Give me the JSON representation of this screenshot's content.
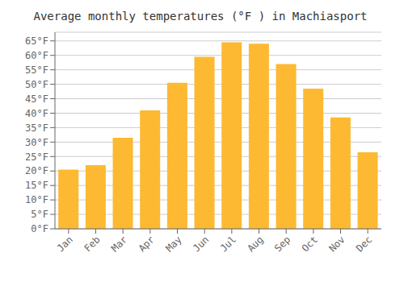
{
  "chart_data": {
    "type": "bar",
    "title": "Average monthly temperatures (°F ) in Machiasport",
    "categories": [
      "Jan",
      "Feb",
      "Mar",
      "Apr",
      "May",
      "Jun",
      "Jul",
      "Aug",
      "Sep",
      "Oct",
      "Nov",
      "Dec"
    ],
    "values": [
      20.5,
      22.0,
      31.5,
      41.0,
      50.5,
      59.5,
      64.5,
      64.0,
      57.0,
      48.5,
      38.5,
      26.5
    ],
    "color": "#FDB931",
    "ylim": [
      0,
      68
    ],
    "yticks": [
      {
        "value": 0,
        "label": "0°F"
      },
      {
        "value": 5,
        "label": "5°F"
      },
      {
        "value": 10,
        "label": "10°F"
      },
      {
        "value": 15,
        "label": "15°F"
      },
      {
        "value": 20,
        "label": "20°F"
      },
      {
        "value": 25,
        "label": "25°F"
      },
      {
        "value": 30,
        "label": "30°F"
      },
      {
        "value": 35,
        "label": "35°F"
      },
      {
        "value": 40,
        "label": "40°F"
      },
      {
        "value": 45,
        "label": "45°F"
      },
      {
        "value": 50,
        "label": "50°F"
      },
      {
        "value": 55,
        "label": "55°F"
      },
      {
        "value": 60,
        "label": "60°F"
      },
      {
        "value": 65,
        "label": "65°F"
      }
    ],
    "grid": true
  }
}
